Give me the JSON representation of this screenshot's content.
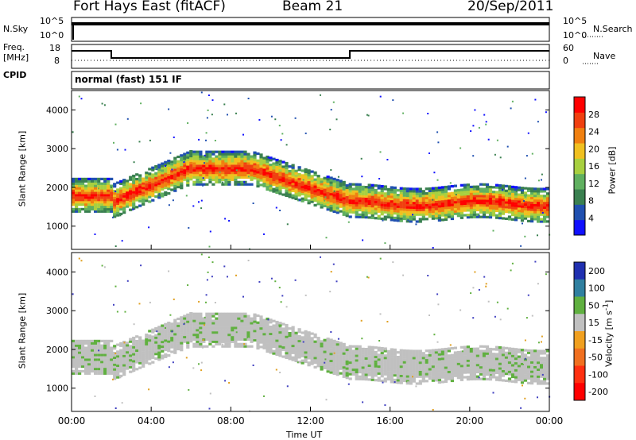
{
  "header": {
    "station": "Fort Hays East (fitACF)",
    "beam": "Beam 21",
    "date": "20/Sep/2011"
  },
  "strip": {
    "nsky_label": "N.Sky",
    "nsky_ticks": [
      "10^5",
      "10^0"
    ],
    "nsearch_label": "N.Search",
    "freq_label": "Freq.",
    "freq_unit": "[MHz]",
    "freq_ticks": [
      "18",
      "8"
    ],
    "nave_ticks": [
      "60",
      "0"
    ],
    "nave_label": "Nave",
    "cpid_label": "CPID",
    "cpid_text": "normal (fast) 151 IF"
  },
  "colors": {
    "power": [
      "#1010ff",
      "#2050b0",
      "#3a8050",
      "#60b060",
      "#a8d040",
      "#f0c020",
      "#f08010",
      "#f04010",
      "#ff0000"
    ],
    "velocity_gray": "#c0c0c0"
  },
  "chart_data": [
    {
      "type": "heatmap",
      "ylabel": "Slant Range [km]",
      "xlabel": "Time UT",
      "x_ticks": [
        "00:00",
        "04:00",
        "08:00",
        "12:00",
        "16:00",
        "20:00",
        "00:00"
      ],
      "y_ticks": [
        "1000",
        "2000",
        "3000",
        "4000"
      ],
      "ylim": [
        400,
        4500
      ],
      "colorbar": {
        "label": "Power [dB]",
        "ticks": [
          "4",
          "8",
          "12",
          "16",
          "20",
          "24",
          "28"
        ],
        "range": [
          0,
          32
        ]
      }
    },
    {
      "type": "heatmap",
      "ylabel": "Slant Range [km]",
      "xlabel": "Time UT",
      "x_ticks": [
        "00:00",
        "04:00",
        "08:00",
        "12:00",
        "16:00",
        "20:00",
        "00:00"
      ],
      "y_ticks": [
        "1000",
        "2000",
        "3000",
        "4000"
      ],
      "ylim": [
        400,
        4500
      ],
      "colorbar": {
        "label": "Velocity [m s^-1]",
        "ticks": [
          "200",
          "100",
          "50",
          "15",
          "-15",
          "-50",
          "-100",
          "-200"
        ]
      }
    }
  ]
}
